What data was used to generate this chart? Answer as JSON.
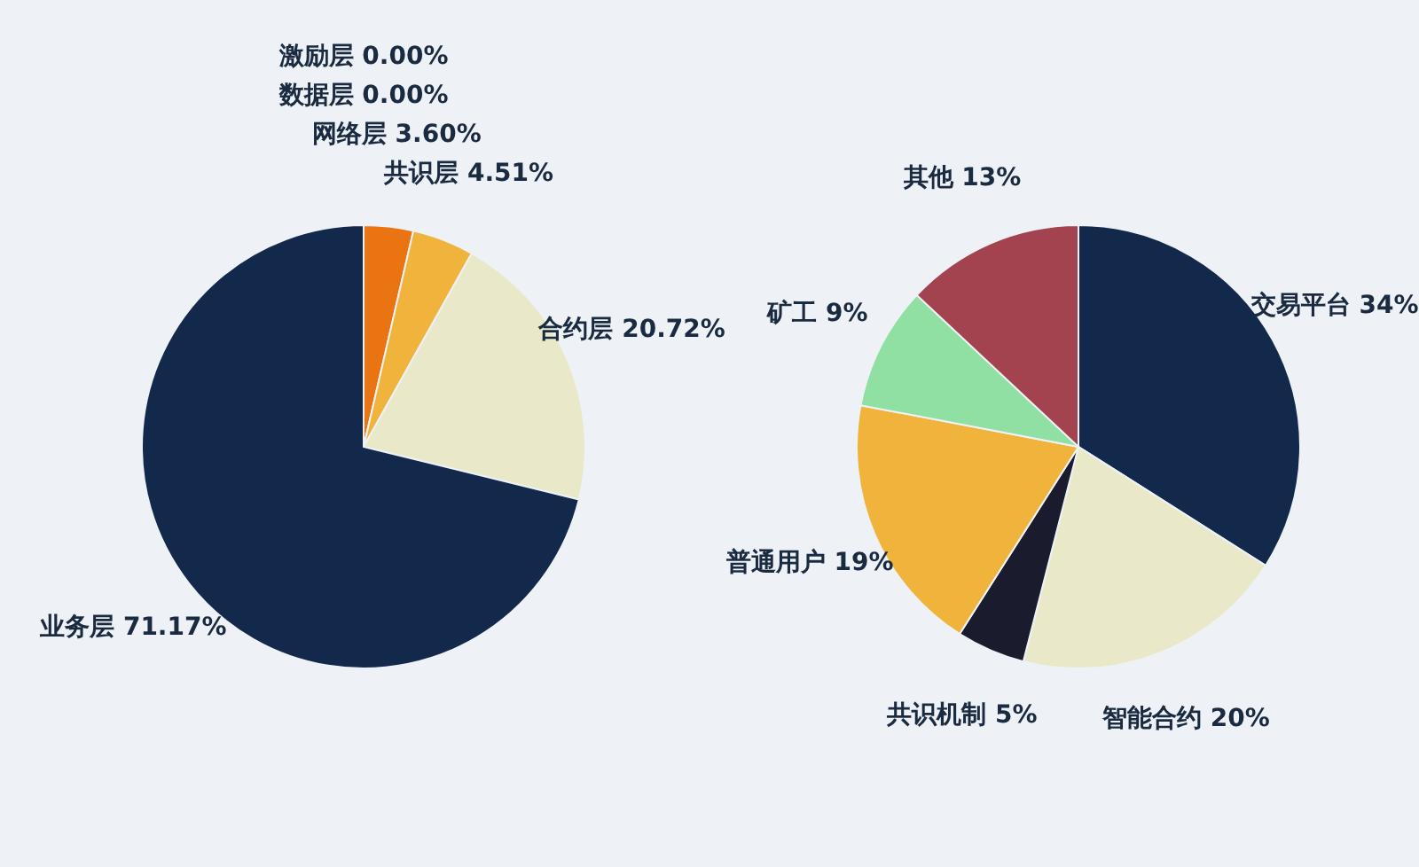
{
  "chart_data": [
    {
      "type": "pie",
      "categories": [
        "激励层",
        "数据层",
        "网络层",
        "共识层",
        "合约层",
        "业务层"
      ],
      "values": [
        0.0,
        0.0,
        3.6,
        4.51,
        20.72,
        71.17
      ],
      "value_labels": [
        "0.00%",
        "0.00%",
        "3.60%",
        "4.51%",
        "20.72%",
        "71.17%"
      ],
      "colors": [
        "#8a3c1a",
        "#5a6a80",
        "#ea7412",
        "#f0b43c",
        "#e9e9c9",
        "#12294c"
      ],
      "legend": false
    },
    {
      "type": "pie",
      "categories": [
        "交易平台",
        "智能合约",
        "共识机制",
        "普通用户",
        "矿工",
        "其他"
      ],
      "values": [
        34,
        20,
        5,
        19,
        9,
        13
      ],
      "value_labels": [
        "34%",
        "20%",
        "5%",
        "19%",
        "9%",
        "13%"
      ],
      "colors": [
        "#12294c",
        "#e9e9c9",
        "#1b1b2e",
        "#f0b43c",
        "#8fe0a2",
        "#a2434f"
      ],
      "legend": false
    }
  ]
}
